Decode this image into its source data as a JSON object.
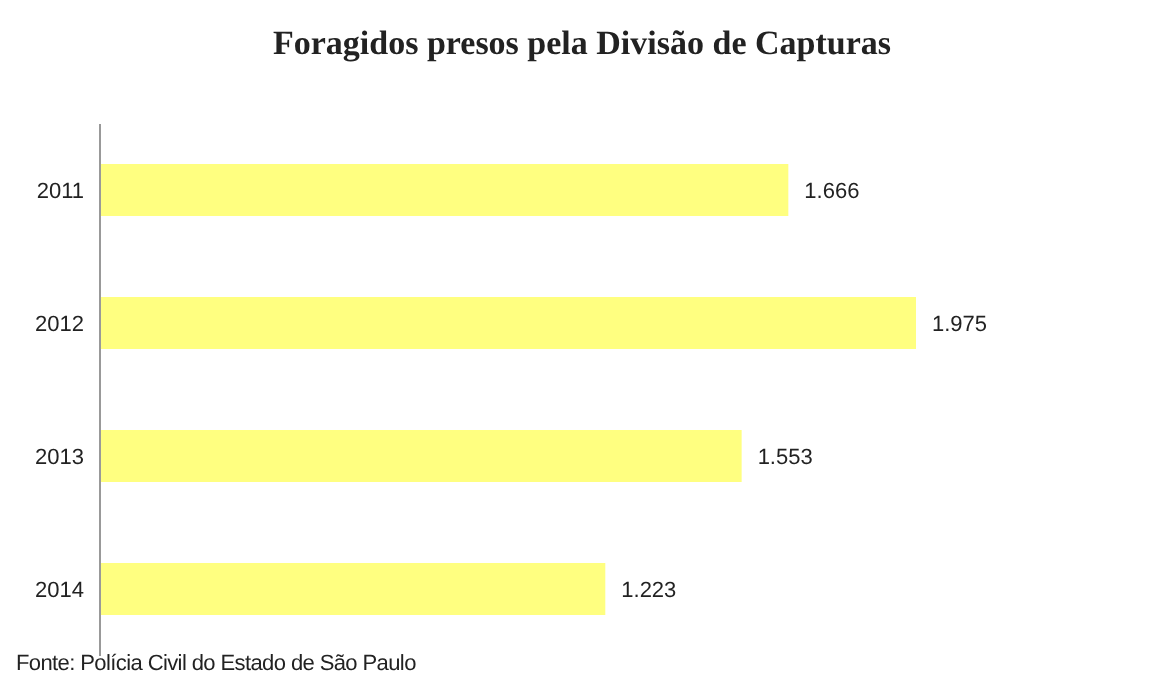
{
  "chart_data": {
    "type": "bar",
    "orientation": "horizontal",
    "title": "Foragidos presos pela Divisão de Capturas",
    "categories": [
      "2011",
      "2012",
      "2013",
      "2014"
    ],
    "values": [
      1666,
      1975,
      1553,
      1223
    ],
    "value_labels": [
      "1.666",
      "1.975",
      "1.553",
      "1.223"
    ],
    "color": "#ffff80",
    "grid": false,
    "legend": false,
    "annotations": [
      "Fonte: Polícia Civil do Estado de São Paulo"
    ]
  }
}
